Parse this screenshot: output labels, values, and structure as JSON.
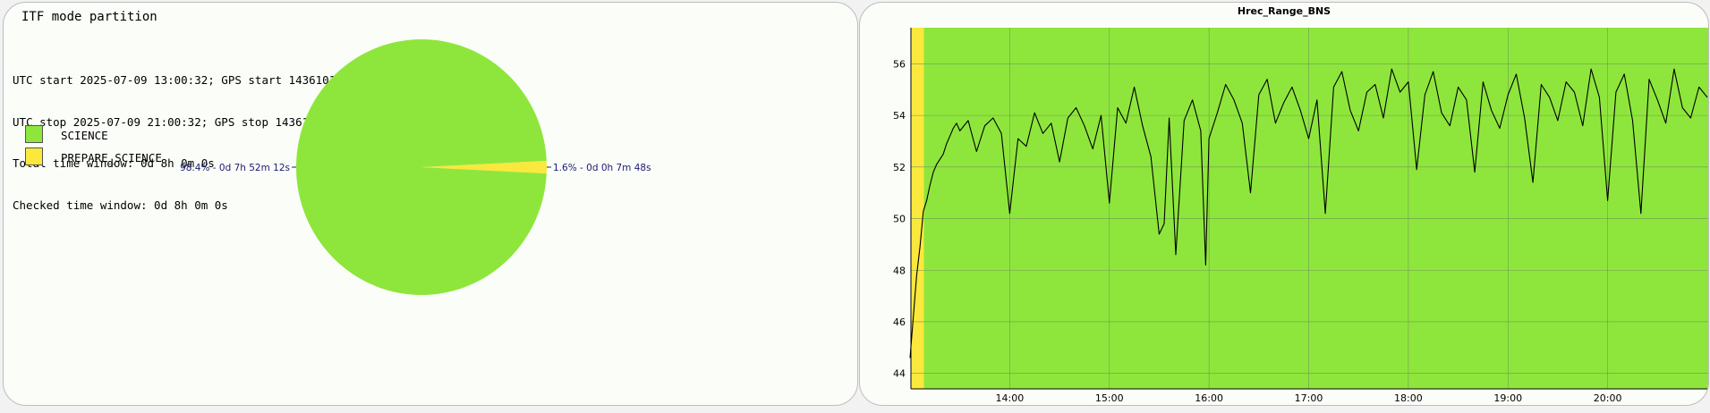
{
  "pie_panel": {
    "title": "ITF mode partition",
    "info_lines": [
      "UTC start 2025-07-09 13:00:32; GPS start 1436101251;",
      "UTC stop 2025-07-09 21:00:32; GPS stop 1436130051;",
      "Total time window: 0d 8h 0m 0s",
      "Checked time window: 0d 8h 0m 0s"
    ]
  },
  "chart_data": [
    {
      "type": "pie",
      "title": "ITF mode partition",
      "labels": [
        "SCIENCE",
        "PREPARE_SCIENCE"
      ],
      "values": [
        98.4,
        1.6
      ],
      "slice_labels": [
        "98.4% - 0d 7h 52m 12s",
        "1.6% - 0d 0h 7m 48s"
      ],
      "colors": [
        "#8ee63c",
        "#fbe83c"
      ],
      "legend": "top-left"
    },
    {
      "type": "line",
      "title": "Hrec_Range_BNS",
      "xlabel": "",
      "ylabel": "",
      "x_ticks": [
        "14:00",
        "15:00",
        "16:00",
        "17:00",
        "18:00",
        "19:00",
        "20:00"
      ],
      "xlim": [
        "13:00:32",
        "21:00:32"
      ],
      "ylim": [
        43.4,
        57.4
      ],
      "y_ticks": [
        44,
        46,
        48,
        50,
        52,
        54,
        56
      ],
      "grid": true,
      "background_segments": [
        {
          "start": "13:00:32",
          "end": "13:08:20",
          "state": "PREPARE_SCIENCE",
          "color": "#fbe83c"
        },
        {
          "start": "13:08:20",
          "end": "21:00:32",
          "state": "SCIENCE",
          "color": "#8ee63c"
        }
      ],
      "series": [
        {
          "color": "#000000",
          "x": [
            "13:00",
            "13:02",
            "13:04",
            "13:06",
            "13:08",
            "13:10",
            "13:12",
            "13:14",
            "13:16",
            "13:18",
            "13:20",
            "13:22",
            "13:24",
            "13:26",
            "13:28",
            "13:30",
            "13:35",
            "13:40",
            "13:45",
            "13:50",
            "13:55",
            "14:00",
            "14:05",
            "14:10",
            "14:15",
            "14:20",
            "14:25",
            "14:30",
            "14:35",
            "14:40",
            "14:45",
            "14:50",
            "14:55",
            "15:00",
            "15:05",
            "15:10",
            "15:15",
            "15:20",
            "15:25",
            "15:30",
            "15:33",
            "15:36",
            "15:40",
            "15:45",
            "15:50",
            "15:55",
            "15:58",
            "16:00",
            "16:05",
            "16:10",
            "16:15",
            "16:20",
            "16:25",
            "16:30",
            "16:35",
            "16:40",
            "16:45",
            "16:50",
            "16:55",
            "17:00",
            "17:05",
            "17:10",
            "17:15",
            "17:20",
            "17:25",
            "17:30",
            "17:35",
            "17:40",
            "17:45",
            "17:50",
            "17:55",
            "18:00",
            "18:05",
            "18:10",
            "18:15",
            "18:20",
            "18:25",
            "18:30",
            "18:35",
            "18:40",
            "18:45",
            "18:50",
            "18:55",
            "19:00",
            "19:05",
            "19:10",
            "19:15",
            "19:20",
            "19:25",
            "19:30",
            "19:35",
            "19:40",
            "19:45",
            "19:50",
            "19:55",
            "20:00",
            "20:05",
            "20:10",
            "20:15",
            "20:20",
            "20:25",
            "20:30",
            "20:35",
            "20:40",
            "20:45",
            "20:50",
            "20:55",
            "21:00"
          ],
          "y": [
            44.6,
            46.2,
            47.8,
            48.9,
            50.3,
            50.7,
            51.3,
            51.8,
            52.1,
            52.3,
            52.5,
            52.9,
            53.2,
            53.5,
            53.7,
            53.4,
            53.8,
            52.6,
            53.6,
            53.9,
            53.3,
            50.2,
            53.1,
            52.8,
            54.1,
            53.3,
            53.7,
            52.2,
            53.9,
            54.3,
            53.6,
            52.7,
            54.0,
            50.6,
            54.3,
            53.7,
            55.1,
            53.6,
            52.4,
            49.4,
            49.8,
            53.9,
            48.6,
            53.8,
            54.6,
            53.4,
            48.2,
            53.1,
            54.1,
            55.2,
            54.6,
            53.7,
            51.0,
            54.8,
            55.4,
            53.7,
            54.5,
            55.1,
            54.2,
            53.1,
            54.6,
            50.2,
            55.1,
            55.7,
            54.2,
            53.4,
            54.9,
            55.2,
            53.9,
            55.8,
            54.9,
            55.3,
            51.9,
            54.8,
            55.7,
            54.1,
            53.6,
            55.1,
            54.6,
            51.8,
            55.3,
            54.2,
            53.5,
            54.8,
            55.6,
            53.9,
            51.4,
            55.2,
            54.7,
            53.8,
            55.3,
            54.9,
            53.6,
            55.8,
            54.7,
            50.7,
            54.9,
            55.6,
            53.8,
            50.2,
            55.4,
            54.6,
            53.7,
            55.8,
            54.3,
            53.9,
            55.1,
            54.7
          ]
        }
      ]
    }
  ]
}
